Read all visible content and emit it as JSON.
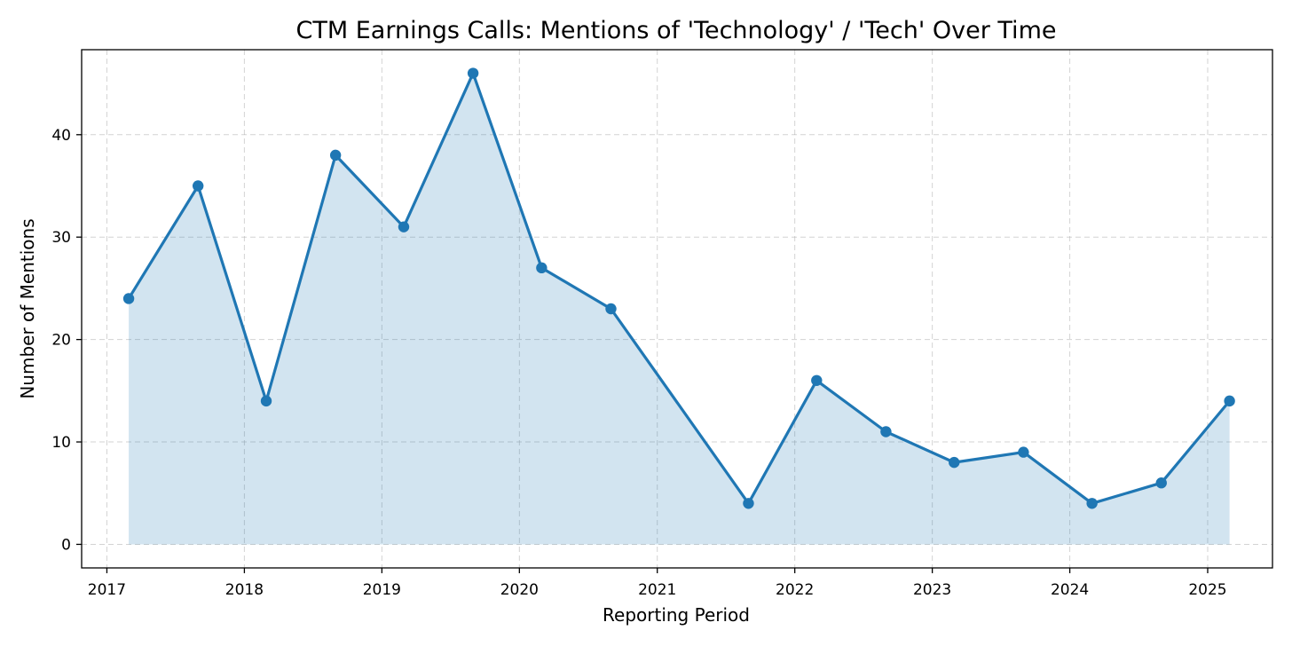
{
  "chart_data": {
    "type": "line",
    "title": "CTM Earnings Calls: Mentions of 'Technology' / 'Tech' Over Time",
    "xlabel": "Reporting Period",
    "ylabel": "Number of Mentions",
    "x_axis_kind": "date",
    "xlim": [
      "2016-10-26",
      "2025-06-22"
    ],
    "ylim": [
      -2.3,
      48.3
    ],
    "x_ticks": [
      "2017",
      "2018",
      "2019",
      "2020",
      "2021",
      "2022",
      "2023",
      "2024",
      "2025"
    ],
    "y_ticks": [
      0,
      10,
      20,
      30,
      40
    ],
    "grid": true,
    "area_fill": true,
    "series": [
      {
        "name": "",
        "color": "#1f77b4",
        "fill_color": "#1f77b4",
        "points": [
          {
            "date": "2017-02-28",
            "value": 24
          },
          {
            "date": "2017-08-31",
            "value": 35
          },
          {
            "date": "2018-02-28",
            "value": 14
          },
          {
            "date": "2018-08-31",
            "value": 38
          },
          {
            "date": "2019-02-28",
            "value": 31
          },
          {
            "date": "2019-08-31",
            "value": 46
          },
          {
            "date": "2020-02-29",
            "value": 27
          },
          {
            "date": "2020-08-31",
            "value": 23
          },
          {
            "date": "2021-08-31",
            "value": 4
          },
          {
            "date": "2022-02-28",
            "value": 16
          },
          {
            "date": "2022-08-31",
            "value": 11
          },
          {
            "date": "2023-02-28",
            "value": 8
          },
          {
            "date": "2023-08-31",
            "value": 9
          },
          {
            "date": "2024-02-29",
            "value": 4
          },
          {
            "date": "2024-08-31",
            "value": 6
          },
          {
            "date": "2025-02-28",
            "value": 14
          }
        ]
      }
    ]
  }
}
